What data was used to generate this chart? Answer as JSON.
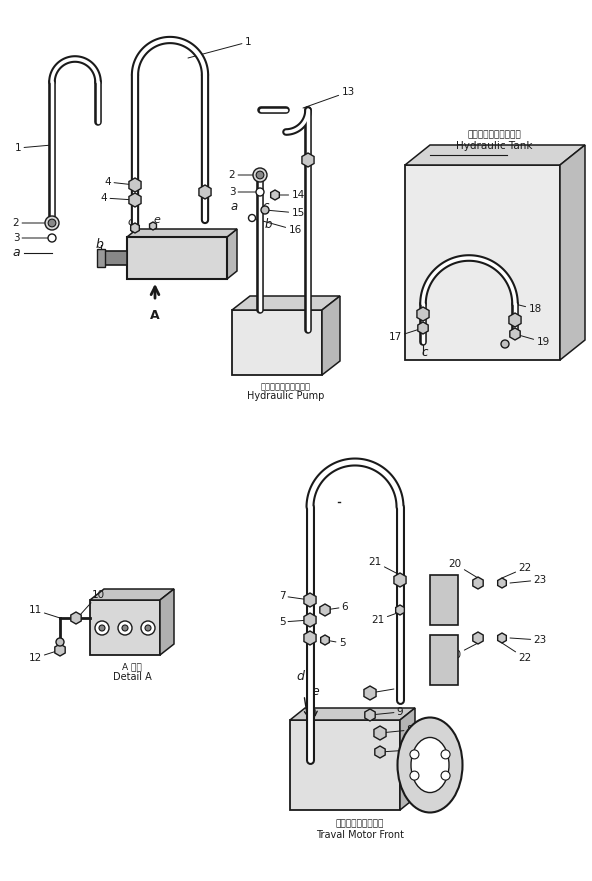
{
  "bg_color": "#ffffff",
  "lc": "#1a1a1a",
  "labels": {
    "hydraulic_pump_jp": "ハイドロリックポンプ",
    "hydraulic_pump_en": "Hydraulic Pump",
    "hydraulic_tank_jp": "ハイドロリックタンク",
    "hydraulic_tank_en": "Hydraulic Tank",
    "travel_motor_jp": "走行モータフロント",
    "travel_motor_en": "Traval Motor Front",
    "detail_a_jp": "A 詳細",
    "detail_a_en": "Detail A"
  }
}
